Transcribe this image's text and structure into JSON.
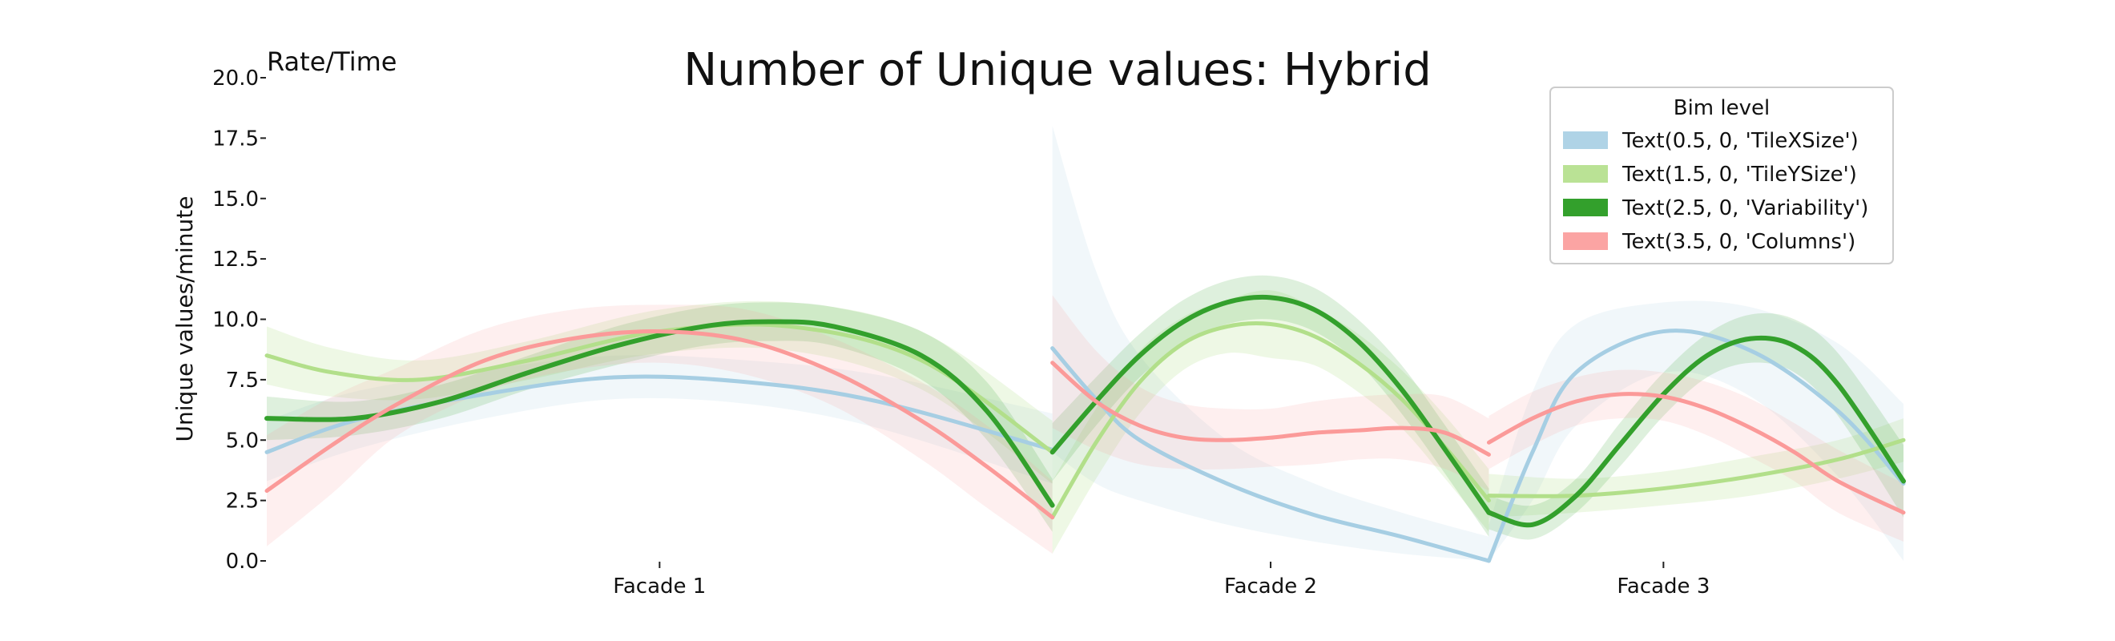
{
  "chart_data": {
    "type": "line",
    "title": "Number of Unique values: Hybrid",
    "corner_label": "Rate/Time",
    "ylabel": "Unique values/minute",
    "xlabel": "",
    "ylim": [
      0,
      20
    ],
    "yticks": [
      0,
      2.5,
      5,
      7.5,
      10,
      12.5,
      15,
      17.5,
      20
    ],
    "ytick_labels": [
      "0.0",
      "2.5",
      "5.0",
      "7.5",
      "10.0",
      "12.5",
      "15.0",
      "17.5",
      "20.0"
    ],
    "grid": false,
    "x_range": [
      0,
      3.75
    ],
    "segments": [
      {
        "label": "Facade 1",
        "x_start": 0,
        "x_end": 1.8,
        "tick": 0.9
      },
      {
        "label": "Facade 2",
        "x_start": 1.8,
        "x_end": 2.8,
        "tick": 2.3
      },
      {
        "label": "Facade 3",
        "x_start": 2.8,
        "x_end": 3.75,
        "tick": 3.2
      }
    ],
    "legend": {
      "title": "Bim level",
      "position": "top-right",
      "entries": [
        "Text(0.5, 0, 'TileXSize')",
        "Text(1.5, 0, 'TileYSize')",
        "Text(2.5, 0, 'Variability')",
        "Text(3.5, 0, 'Columns')"
      ]
    },
    "series": [
      {
        "name": "Text(0.5, 0, 'TileXSize')",
        "color": "#a6cee3",
        "band_opacity": 0.16,
        "segments": [
          {
            "x": [
              0,
              0.2,
              0.5,
              0.8,
              1.1,
              1.4,
              1.8
            ],
            "y": [
              4.5,
              5.8,
              6.9,
              7.6,
              7.4,
              6.6,
              4.6
            ],
            "lower": [
              3.3,
              4.6,
              5.9,
              6.7,
              6.5,
              5.5,
              3.2
            ],
            "upper": [
              5.8,
              7.0,
              7.9,
              8.5,
              8.3,
              7.7,
              6.1
            ]
          },
          {
            "x": [
              1.8,
              1.9,
              2.0,
              2.2,
              2.4,
              2.6,
              2.8
            ],
            "y": [
              8.8,
              6.7,
              5.0,
              3.2,
              1.9,
              1.0,
              0.0
            ],
            "lower": [
              4.5,
              3.2,
              2.5,
              1.5,
              0.8,
              0.3,
              0.0
            ],
            "upper": [
              18.0,
              12.0,
              8.5,
              5.0,
              3.2,
              2.0,
              1.0
            ]
          },
          {
            "x": [
              2.8,
              2.9,
              3.0,
              3.2,
              3.4,
              3.6,
              3.75
            ],
            "y": [
              0.0,
              4.5,
              7.8,
              9.5,
              8.7,
              6.2,
              3.2
            ],
            "lower": [
              0.0,
              2.5,
              5.6,
              7.8,
              6.8,
              3.5,
              0.0
            ],
            "upper": [
              1.5,
              7.0,
              9.8,
              10.7,
              10.5,
              9.0,
              6.5
            ]
          }
        ]
      },
      {
        "name": "Text(1.5, 0, 'TileYSize')",
        "color": "#b2df8a",
        "band_opacity": 0.22,
        "segments": [
          {
            "x": [
              0,
              0.15,
              0.35,
              0.6,
              0.9,
              1.2,
              1.5,
              1.8
            ],
            "y": [
              8.5,
              7.8,
              7.5,
              8.3,
              9.5,
              9.7,
              8.3,
              4.5
            ],
            "lower": [
              7.3,
              6.8,
              6.7,
              7.5,
              8.6,
              8.7,
              7.1,
              3.2
            ],
            "upper": [
              9.7,
              8.8,
              8.3,
              9.1,
              10.4,
              10.7,
              9.5,
              5.8
            ]
          },
          {
            "x": [
              1.8,
              1.9,
              2.0,
              2.1,
              2.2,
              2.3,
              2.4,
              2.5,
              2.6,
              2.7,
              2.8
            ],
            "y": [
              1.8,
              4.9,
              7.4,
              9.0,
              9.7,
              9.8,
              9.3,
              8.2,
              6.7,
              4.7,
              2.5
            ],
            "lower": [
              0.3,
              3.4,
              6.1,
              7.9,
              8.6,
              8.4,
              8.1,
              7.0,
              5.5,
              3.4,
              1.2
            ],
            "upper": [
              3.3,
              6.3,
              8.7,
              10.1,
              10.8,
              11.2,
              10.5,
              9.4,
              7.9,
              6.0,
              3.8
            ]
          },
          {
            "x": [
              2.8,
              3.0,
              3.2,
              3.4,
              3.6,
              3.75
            ],
            "y": [
              2.7,
              2.7,
              3.0,
              3.5,
              4.2,
              5.0
            ],
            "lower": [
              1.8,
              2.0,
              2.3,
              2.7,
              3.4,
              4.1
            ],
            "upper": [
              3.6,
              3.4,
              3.7,
              4.3,
              5.0,
              5.9
            ]
          }
        ]
      },
      {
        "name": "Text(2.5, 0, 'Variability')",
        "color": "#33a02c",
        "band_opacity": 0.16,
        "segments": [
          {
            "x": [
              0,
              0.2,
              0.4,
              0.6,
              0.8,
              1.0,
              1.15,
              1.3,
              1.5,
              1.65,
              1.8
            ],
            "y": [
              5.9,
              5.9,
              6.6,
              7.8,
              8.9,
              9.7,
              9.9,
              9.7,
              8.5,
              6.2,
              2.3
            ],
            "lower": [
              5.0,
              5.2,
              5.9,
              7.1,
              8.1,
              8.9,
              9.1,
              8.9,
              7.5,
              5.0,
              1.2
            ],
            "upper": [
              6.8,
              6.6,
              7.3,
              8.5,
              9.7,
              10.5,
              10.7,
              10.5,
              9.5,
              7.4,
              3.4
            ]
          },
          {
            "x": [
              1.8,
              1.9,
              2.0,
              2.1,
              2.2,
              2.3,
              2.4,
              2.5,
              2.6,
              2.7,
              2.8
            ],
            "y": [
              4.5,
              6.6,
              8.5,
              9.9,
              10.7,
              10.9,
              10.4,
              9.1,
              7.1,
              4.6,
              2.0
            ],
            "lower": [
              3.3,
              5.6,
              7.6,
              9.0,
              9.8,
              10.0,
              9.5,
              8.2,
              6.1,
              3.6,
              1.0
            ],
            "upper": [
              5.7,
              7.6,
              9.4,
              10.8,
              11.6,
              11.8,
              11.3,
              10.0,
              8.1,
              5.6,
              3.0
            ]
          },
          {
            "x": [
              2.8,
              2.9,
              3.0,
              3.1,
              3.2,
              3.3,
              3.4,
              3.5,
              3.6,
              3.75
            ],
            "y": [
              2.0,
              1.5,
              2.7,
              4.8,
              6.9,
              8.5,
              9.2,
              8.9,
              7.3,
              3.3
            ],
            "lower": [
              1.3,
              0.9,
              2.0,
              3.9,
              6.0,
              7.6,
              8.2,
              7.8,
              6.0,
              1.8
            ],
            "upper": [
              2.7,
              2.3,
              3.4,
              5.7,
              7.8,
              9.4,
              10.2,
              10.0,
              8.6,
              4.8
            ]
          }
        ]
      },
      {
        "name": "Text(3.5, 0, 'Columns')",
        "color": "#fb9a99",
        "band_opacity": 0.16,
        "segments": [
          {
            "x": [
              0,
              0.15,
              0.3,
              0.5,
              0.7,
              0.9,
              1.1,
              1.3,
              1.5,
              1.65,
              1.8
            ],
            "y": [
              2.9,
              4.8,
              6.5,
              8.3,
              9.2,
              9.5,
              9.1,
              7.8,
              5.8,
              3.9,
              1.8
            ],
            "lower": [
              0.6,
              2.8,
              5.2,
              7.0,
              7.9,
              8.2,
              7.7,
              6.4,
              4.2,
              2.2,
              0.3
            ],
            "upper": [
              5.2,
              6.8,
              8.0,
              9.6,
              10.4,
              10.6,
              10.4,
              9.2,
              7.4,
              5.6,
              3.3
            ]
          },
          {
            "x": [
              1.8,
              1.9,
              2.0,
              2.1,
              2.2,
              2.3,
              2.4,
              2.5,
              2.6,
              2.7,
              2.8
            ],
            "y": [
              8.2,
              6.6,
              5.6,
              5.1,
              5.0,
              5.1,
              5.3,
              5.4,
              5.5,
              5.3,
              4.4
            ],
            "lower": [
              5.5,
              4.6,
              4.0,
              3.8,
              3.8,
              3.9,
              4.0,
              4.2,
              4.2,
              3.8,
              2.9
            ],
            "upper": [
              11.0,
              8.7,
              7.2,
              6.5,
              6.3,
              6.3,
              6.6,
              6.8,
              6.9,
              6.8,
              5.9
            ]
          },
          {
            "x": [
              2.8,
              2.9,
              3.0,
              3.1,
              3.2,
              3.3,
              3.4,
              3.5,
              3.6,
              3.75
            ],
            "y": [
              4.9,
              5.9,
              6.6,
              6.9,
              6.8,
              6.3,
              5.5,
              4.5,
              3.3,
              2.0
            ],
            "lower": [
              3.8,
              4.8,
              5.6,
              5.9,
              5.8,
              5.2,
              4.3,
              3.3,
              2.0,
              0.8
            ],
            "upper": [
              6.0,
              7.0,
              7.6,
              7.9,
              7.8,
              7.4,
              6.7,
              5.7,
              4.6,
              3.2
            ]
          }
        ]
      }
    ]
  }
}
